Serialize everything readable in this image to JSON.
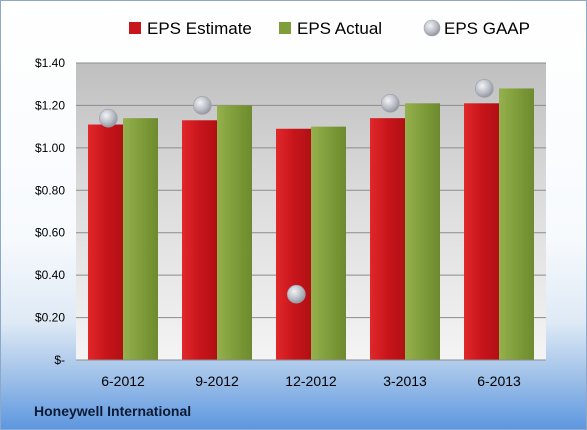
{
  "company": "Honeywell International",
  "chart_data": {
    "type": "bar",
    "categories": [
      "6-2012",
      "9-2012",
      "12-2012",
      "3-2013",
      "6-2013"
    ],
    "series": [
      {
        "name": "EPS Estimate",
        "kind": "bar",
        "color": "#c8151b",
        "values": [
          1.11,
          1.13,
          1.09,
          1.14,
          1.21
        ]
      },
      {
        "name": "EPS Actual",
        "kind": "bar",
        "color": "#7f9d3a",
        "values": [
          1.14,
          1.2,
          1.1,
          1.21,
          1.28
        ]
      },
      {
        "name": "EPS GAAP",
        "kind": "marker",
        "color": "#b8bcc4",
        "values": [
          1.14,
          1.2,
          0.31,
          1.21,
          1.28
        ]
      }
    ],
    "ylim": [
      0,
      1.4
    ],
    "yticks": [
      0,
      0.2,
      0.4,
      0.6,
      0.8,
      1.0,
      1.2,
      1.4
    ],
    "ytick_labels": [
      "$-",
      "$0.20",
      "$0.40",
      "$0.60",
      "$0.80",
      "$1.00",
      "$1.20",
      "$1.40"
    ],
    "grid": true,
    "legend_position": "top"
  }
}
